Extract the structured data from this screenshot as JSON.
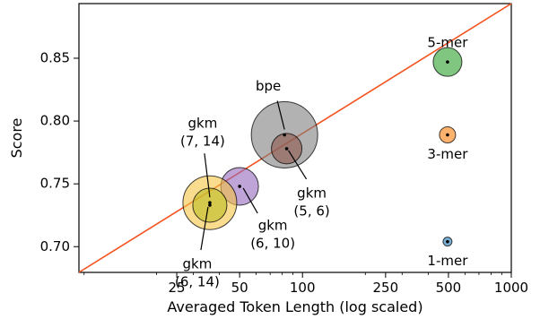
{
  "chart_data": {
    "type": "scatter",
    "title": "",
    "xlabel": "Averaged Token Length (log scaled)",
    "ylabel": "Score",
    "x_scale": "log",
    "xlim": [
      8.5,
      1000
    ],
    "ylim": [
      0.6795,
      0.8935
    ],
    "xticks": [
      25,
      50,
      100,
      250,
      500,
      1000
    ],
    "xtick_labels": [
      "25",
      "50",
      "100",
      "250",
      "500",
      "1000"
    ],
    "yticks": [
      0.7,
      0.75,
      0.8,
      0.85
    ],
    "ytick_labels": [
      "0.70",
      "0.75",
      "0.80",
      "0.85"
    ],
    "reference_line": {
      "description": "diagonal",
      "color": "#f4511e"
    },
    "points": [
      {
        "label_lines": [
          "1-mer"
        ],
        "x": 495,
        "y": 0.704,
        "size": 5,
        "color": "#1f77b4"
      },
      {
        "label_lines": [
          "3-mer"
        ],
        "x": 495,
        "y": 0.789,
        "size": 9,
        "color": "#ff7f0e"
      },
      {
        "label_lines": [
          "5-mer"
        ],
        "x": 495,
        "y": 0.847,
        "size": 16,
        "color": "#2ca02c"
      },
      {
        "label_lines": [
          "bpe"
        ],
        "x": 82,
        "y": 0.789,
        "size": 37,
        "color": "#7f7f7f"
      },
      {
        "label_lines": [
          "gkm",
          "(5, 6)"
        ],
        "x": 84,
        "y": 0.778,
        "size": 17,
        "color": "#8c564b"
      },
      {
        "label_lines": [
          "gkm",
          "(6, 10)"
        ],
        "x": 50,
        "y": 0.748,
        "size": 21,
        "color": "#9467bd"
      },
      {
        "label_lines": [
          "gkm",
          "(7, 14)"
        ],
        "x": 36,
        "y": 0.735,
        "size": 30,
        "color": "#f5c542"
      },
      {
        "label_lines": [
          "gkm",
          "(6, 14)"
        ],
        "x": 36,
        "y": 0.733,
        "size": 19,
        "color": "#bcbd22"
      }
    ]
  }
}
